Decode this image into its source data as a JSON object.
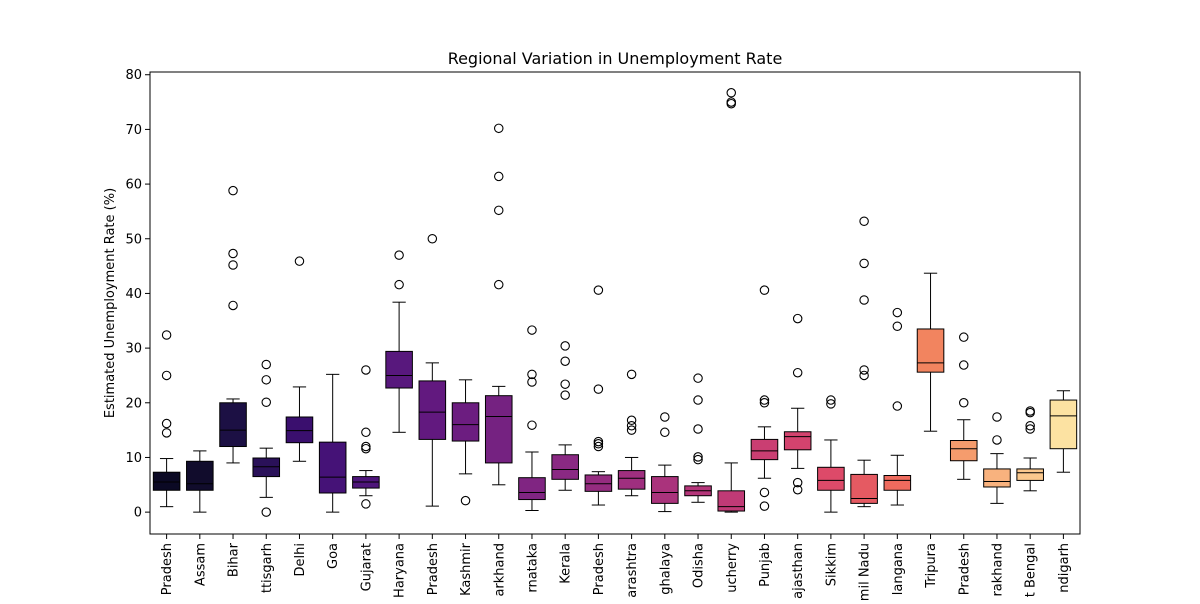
{
  "chart_data": {
    "type": "box",
    "title": "Regional Variation in Unemployment Rate",
    "xlabel": "",
    "ylabel": "Estimated Unemployment Rate (%)",
    "ylim": [
      -4,
      80.5
    ],
    "yticks": [
      0,
      10,
      20,
      30,
      40,
      50,
      60,
      70,
      80
    ],
    "grid": false,
    "categories": [
      "Andhra Pradesh",
      "Assam",
      "Bihar",
      "Chhattisgarh",
      "Delhi",
      "Goa",
      "Gujarat",
      "Haryana",
      "Himachal Pradesh",
      "Jammu & Kashmir",
      "Jharkhand",
      "Karnataka",
      "Kerala",
      "Madhya Pradesh",
      "Maharashtra",
      "Meghalaya",
      "Odisha",
      "Puducherry",
      "Punjab",
      "Rajasthan",
      "Sikkim",
      "Tamil Nadu",
      "Telangana",
      "Tripura",
      "Uttar Pradesh",
      "Uttarakhand",
      "West Bengal",
      "Chandigarh"
    ],
    "tick_labels": [
      "Pradesh",
      "Assam",
      "Bihar",
      "ttisgarh",
      "Delhi",
      "Goa",
      "Gujarat",
      "Haryana",
      "Pradesh",
      "Kashmir",
      "arkhand",
      "rnataka",
      "Kerala",
      "Pradesh",
      "arashtra",
      "ghalaya",
      "Odisha",
      "ucherry",
      "Punjab",
      "ajasthan",
      "Sikkim",
      "mil Nadu",
      "langana",
      "Tripura",
      "Pradesh",
      "rakhand",
      "t Bengal",
      "ndigarh"
    ],
    "colors": [
      "#0b0924",
      "#110c2c",
      "#1c1044",
      "#2a1159",
      "#3a0f6e",
      "#451277",
      "#4e157a",
      "#58187d",
      "#62197f",
      "#6c1d80",
      "#752281",
      "#802582",
      "#8a2983",
      "#952c80",
      "#9f2f7f",
      "#aa337c",
      "#b5367a",
      "#c03a76",
      "#ca3e72",
      "#d3436e",
      "#dd4a69",
      "#e55a62",
      "#ee6b5e",
      "#f2845f",
      "#f59c6d",
      "#f8b27e",
      "#fbc98e",
      "#fce2a2"
    ],
    "boxes": [
      {
        "whisker_low": 1.0,
        "q1": 4.0,
        "median": 5.5,
        "q3": 7.3,
        "whisker_high": 9.8,
        "outliers": [
          14.5,
          16.2,
          25.0,
          32.4
        ]
      },
      {
        "whisker_low": 0.0,
        "q1": 4.0,
        "median": 5.2,
        "q3": 9.3,
        "whisker_high": 11.2,
        "outliers": []
      },
      {
        "whisker_low": 9.0,
        "q1": 12.0,
        "median": 15.0,
        "q3": 20.0,
        "whisker_high": 20.7,
        "outliers": [
          37.8,
          45.2,
          47.3,
          58.8
        ]
      },
      {
        "whisker_low": 2.7,
        "q1": 6.5,
        "median": 8.3,
        "q3": 9.9,
        "whisker_high": 11.7,
        "outliers": [
          0.0,
          20.1,
          24.2,
          27.0
        ]
      },
      {
        "whisker_low": 9.3,
        "q1": 12.7,
        "median": 14.9,
        "q3": 17.4,
        "whisker_high": 22.9,
        "outliers": [
          45.9
        ]
      },
      {
        "whisker_low": 0.0,
        "q1": 3.5,
        "median": 6.4,
        "q3": 12.8,
        "whisker_high": 25.2,
        "outliers": []
      },
      {
        "whisker_low": 3.0,
        "q1": 4.4,
        "median": 5.5,
        "q3": 6.5,
        "whisker_high": 7.6,
        "outliers": [
          1.5,
          11.6,
          12.0,
          14.6,
          26.0
        ]
      },
      {
        "whisker_low": 14.6,
        "q1": 22.7,
        "median": 25.0,
        "q3": 29.4,
        "whisker_high": 38.4,
        "outliers": [
          41.6,
          47.0
        ]
      },
      {
        "whisker_low": 1.1,
        "q1": 13.3,
        "median": 18.3,
        "q3": 24.0,
        "whisker_high": 27.3,
        "outliers": [
          50.0
        ]
      },
      {
        "whisker_low": 7.0,
        "q1": 13.0,
        "median": 16.0,
        "q3": 20.0,
        "whisker_high": 24.2,
        "outliers": [
          2.1
        ]
      },
      {
        "whisker_low": 5.0,
        "q1": 9.0,
        "median": 17.5,
        "q3": 21.3,
        "whisker_high": 23.0,
        "outliers": [
          41.6,
          55.2,
          61.4,
          70.2
        ]
      },
      {
        "whisker_low": 0.3,
        "q1": 2.3,
        "median": 3.6,
        "q3": 6.3,
        "whisker_high": 11.0,
        "outliers": [
          15.9,
          23.8,
          25.2,
          33.3
        ]
      },
      {
        "whisker_low": 4.0,
        "q1": 6.0,
        "median": 7.8,
        "q3": 10.5,
        "whisker_high": 12.3,
        "outliers": [
          21.4,
          23.4,
          27.6,
          30.4
        ]
      },
      {
        "whisker_low": 1.3,
        "q1": 3.8,
        "median": 5.2,
        "q3": 6.8,
        "whisker_high": 7.4,
        "outliers": [
          12.0,
          12.5,
          12.9,
          22.5,
          40.6
        ]
      },
      {
        "whisker_low": 3.0,
        "q1": 4.2,
        "median": 6.2,
        "q3": 7.6,
        "whisker_high": 10.0,
        "outliers": [
          15.0,
          15.8,
          16.8,
          25.2
        ]
      },
      {
        "whisker_low": 0.1,
        "q1": 1.6,
        "median": 3.6,
        "q3": 6.5,
        "whisker_high": 8.6,
        "outliers": [
          14.6,
          17.4
        ]
      },
      {
        "whisker_low": 1.8,
        "q1": 3.0,
        "median": 3.9,
        "q3": 4.8,
        "whisker_high": 5.4,
        "outliers": [
          9.6,
          10.1,
          15.2,
          20.5,
          24.5
        ]
      },
      {
        "whisker_low": 0.0,
        "q1": 0.2,
        "median": 1.0,
        "q3": 3.9,
        "whisker_high": 9.0,
        "outliers": [
          74.7,
          75.0,
          76.7
        ]
      },
      {
        "whisker_low": 6.2,
        "q1": 9.6,
        "median": 11.2,
        "q3": 13.3,
        "whisker_high": 15.6,
        "outliers": [
          1.1,
          3.6,
          20.0,
          20.5,
          40.6
        ]
      },
      {
        "whisker_low": 8.0,
        "q1": 11.4,
        "median": 13.8,
        "q3": 14.7,
        "whisker_high": 19.0,
        "outliers": [
          4.1,
          5.4,
          25.5,
          35.4
        ]
      },
      {
        "whisker_low": 0.0,
        "q1": 4.0,
        "median": 5.8,
        "q3": 8.2,
        "whisker_high": 13.2,
        "outliers": [
          19.8,
          20.5
        ]
      },
      {
        "whisker_low": 1.0,
        "q1": 1.6,
        "median": 2.5,
        "q3": 6.9,
        "whisker_high": 9.5,
        "outliers": [
          25.0,
          26.0,
          38.8,
          45.5,
          53.2
        ]
      },
      {
        "whisker_low": 1.3,
        "q1": 4.0,
        "median": 5.8,
        "q3": 6.7,
        "whisker_high": 10.4,
        "outliers": [
          19.4,
          34.0,
          36.5
        ]
      },
      {
        "whisker_low": 14.8,
        "q1": 25.6,
        "median": 27.3,
        "q3": 33.5,
        "whisker_high": 43.7,
        "outliers": []
      },
      {
        "whisker_low": 6.0,
        "q1": 9.4,
        "median": 11.6,
        "q3": 13.1,
        "whisker_high": 16.9,
        "outliers": [
          20.0,
          26.9,
          32.0
        ]
      },
      {
        "whisker_low": 1.6,
        "q1": 4.6,
        "median": 5.6,
        "q3": 7.9,
        "whisker_high": 10.7,
        "outliers": [
          13.2,
          17.4
        ]
      },
      {
        "whisker_low": 3.9,
        "q1": 5.8,
        "median": 7.2,
        "q3": 7.9,
        "whisker_high": 9.9,
        "outliers": [
          15.2,
          15.8,
          18.2,
          18.5
        ]
      },
      {
        "whisker_low": 7.3,
        "q1": 11.6,
        "median": 17.6,
        "q3": 20.5,
        "whisker_high": 22.2,
        "outliers": []
      }
    ]
  }
}
